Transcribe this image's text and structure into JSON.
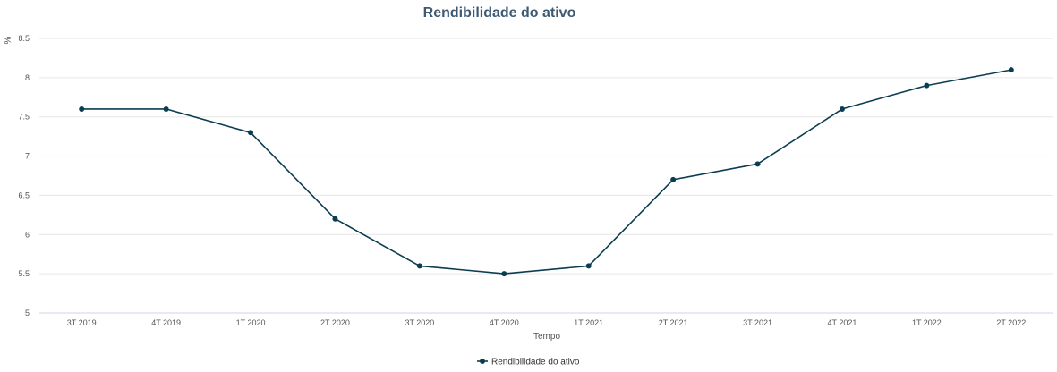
{
  "chart_data": {
    "type": "line",
    "title": "Rendibilidade do ativo",
    "xlabel": "Tempo",
    "ylabel": "%",
    "categories": [
      "3T 2019",
      "4T 2019",
      "1T 2020",
      "2T 2020",
      "3T 2020",
      "4T 2020",
      "1T 2021",
      "2T 2021",
      "3T 2021",
      "4T 2021",
      "1T 2022",
      "2T 2022"
    ],
    "series": [
      {
        "name": "Rendibilidade do ativo",
        "values": [
          7.6,
          7.6,
          7.3,
          6.2,
          5.6,
          5.5,
          5.6,
          6.7,
          6.9,
          7.6,
          7.9,
          8.1
        ],
        "color": "#0b3d52"
      }
    ],
    "ylim": [
      5,
      8.5
    ],
    "yticks": [
      "5",
      "5.5",
      "6",
      "6.5",
      "7",
      "7.5",
      "8",
      "8.5"
    ],
    "grid": true,
    "legend_position": "bottom-center"
  }
}
